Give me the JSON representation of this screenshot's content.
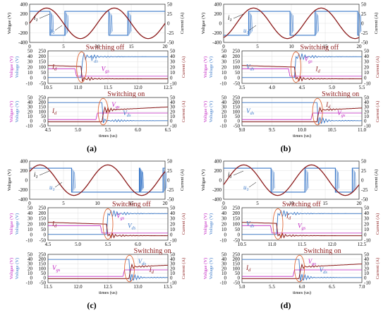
{
  "colors": {
    "voltage": "#3a78c8",
    "current": "#8b1a1a",
    "vgs": "#c020c0",
    "ellipse": "#e06a3a",
    "grid": "#d8d8d8",
    "axis_left_vgs": "#c020c0",
    "axis_right_current": "#8b1a1a",
    "axis_left_voltage": "#3a78c8"
  },
  "chart_data": [
    {
      "id": "a",
      "caption": "(a)",
      "top": {
        "type": "line",
        "ylabel_left": "Voltgae (V)",
        "ylabel_right": "Current (A)",
        "ylim_left": [
          -400,
          400
        ],
        "ylim_right": [
          -50,
          50
        ],
        "xlim": [
          0,
          20
        ],
        "yticks_left": [
          "400",
          "200",
          "0",
          "-200",
          "-400"
        ],
        "yticks_right": [
          "50",
          "25",
          "0",
          "-25",
          "-50"
        ],
        "xticks": [
          "0",
          "5",
          "10",
          "15",
          "20"
        ],
        "annotations": [
          "i",
          "1",
          "u",
          "1"
        ],
        "current_sine": {
          "amplitude": 40,
          "period": 10,
          "phase": 0.0
        },
        "voltage_squarewave": {
          "levels": [
            250,
            -250
          ],
          "edges": [
            3.0,
            5.2,
            11.7,
            14.5
          ]
        }
      },
      "middle": {
        "type": "line",
        "title": "Switching off",
        "ylabel_left": "Voltage (V)",
        "ylabel_left2": "Voltage (V)",
        "ylabel_right": "Current (A)",
        "xlim": [
          10.5,
          12.5
        ],
        "xticks": [
          "10.5",
          "11.0",
          "11.5",
          "12.0",
          "12.5"
        ],
        "yticks_left": [
          "50",
          "40",
          "30",
          "20",
          "10",
          "0",
          "-10"
        ],
        "yticks_left2": [
          "250",
          "200",
          "150",
          "100",
          "50",
          "0",
          "-50"
        ],
        "yticks_right": [
          "50",
          "40",
          "30",
          "20",
          "10",
          "0",
          "-10"
        ],
        "labels": [
          "I",
          "d",
          "V",
          "ds",
          "V",
          "gs"
        ]
      },
      "bottom": {
        "type": "line",
        "title": "Switching on",
        "xlabel": "times (us)",
        "xlim": [
          4.5,
          6.5
        ],
        "xticks": [
          "4.5",
          "5.0",
          "5.5",
          "6.0",
          "6.5"
        ],
        "yticks_left": [
          "50",
          "40",
          "30",
          "20",
          "10",
          "0",
          "-10"
        ],
        "yticks_left2": [
          "250",
          "200",
          "150",
          "100",
          "50",
          "0",
          "-50"
        ],
        "yticks_right": [
          "50",
          "40",
          "30",
          "20",
          "10",
          "0",
          "-10"
        ],
        "labels": [
          "I",
          "d",
          "V",
          "gs",
          "V",
          "ds"
        ]
      }
    },
    {
      "id": "b",
      "caption": "(b)",
      "top": {
        "type": "line",
        "ylabel_left": "Voltgae (V)",
        "ylabel_right": "Current (A)",
        "ylim_left": [
          -400,
          400
        ],
        "ylim_right": [
          -50,
          50
        ],
        "xlim": [
          0,
          20
        ],
        "yticks_left": [
          "400",
          "200",
          "0",
          "-200",
          "-400"
        ],
        "yticks_right": [
          "50",
          "25",
          "0",
          "-25",
          "-50"
        ],
        "xticks": [
          "0",
          "5",
          "10",
          "15",
          "20"
        ],
        "annotations": [
          "i",
          "1",
          "u",
          "1"
        ]
      },
      "middle": {
        "type": "line",
        "title": "Switching off",
        "xlim": [
          3.5,
          5.5
        ],
        "xticks": [
          "3.5",
          "4.0",
          "4.5",
          "5.0",
          "5.5"
        ],
        "yticks_left": [
          "50",
          "40",
          "30",
          "20",
          "10",
          "0",
          "-10"
        ],
        "yticks_left2": [
          "250",
          "200",
          "150",
          "100",
          "50",
          "0",
          "-50"
        ],
        "yticks_right": [
          "50",
          "40",
          "30",
          "20",
          "10",
          "0",
          "-10"
        ],
        "labels": [
          "V",
          "ds",
          "V",
          "gs",
          "I",
          "d"
        ]
      },
      "bottom": {
        "type": "line",
        "title": "Switching on",
        "xlabel": "times (us)",
        "xlim": [
          9.0,
          11.0
        ],
        "xticks": [
          "9.0",
          "9.5",
          "10.0",
          "10.5",
          "11.0"
        ],
        "yticks_left": [
          "50",
          "40",
          "30",
          "20",
          "10",
          "0",
          "-10"
        ],
        "yticks_left2": [
          "250",
          "200",
          "150",
          "100",
          "50",
          "0",
          "-50"
        ],
        "yticks_right": [
          "50",
          "40",
          "30",
          "20",
          "10",
          "0",
          "-10"
        ],
        "labels": [
          "V",
          "ds",
          "I",
          "d",
          "V",
          "gs"
        ]
      }
    },
    {
      "id": "c",
      "caption": "(c)",
      "top": {
        "type": "line",
        "ylabel_left": "Voltgae (V)",
        "ylabel_right": "Current (A)",
        "ylim_left": [
          -400,
          400
        ],
        "ylim_right": [
          -50,
          50
        ],
        "xlim": [
          0,
          20
        ],
        "yticks_left": [
          "400",
          "200",
          "0",
          "-200",
          "-400"
        ],
        "yticks_right": [
          "50",
          "25",
          "0",
          "-25",
          "-50"
        ],
        "xticks": [
          "0",
          "5",
          "10",
          "15",
          "20"
        ],
        "annotations": [
          "i",
          "1",
          "u",
          "1"
        ]
      },
      "middle": {
        "type": "line",
        "title": "Switching off",
        "xlim": [
          4.5,
          6.5
        ],
        "xticks": [
          "4.5",
          "5.0",
          "5.5",
          "6.0",
          "6.5"
        ],
        "yticks_left": [
          "50",
          "40",
          "30",
          "20",
          "10",
          "0",
          "-10"
        ],
        "yticks_left2": [
          "250",
          "200",
          "150",
          "100",
          "50",
          "0",
          "-50"
        ],
        "yticks_right": [
          "50",
          "40",
          "30",
          "20",
          "10",
          "0",
          "-10"
        ],
        "labels": [
          "I",
          "d",
          "V",
          "gs",
          "V",
          "ds"
        ]
      },
      "bottom": {
        "type": "line",
        "title": "Switching on",
        "xlabel": "times (us)",
        "xlim": [
          11.5,
          13.5
        ],
        "xticks": [
          "11.5",
          "12.0",
          "12.5",
          "13.0",
          "13.5"
        ],
        "yticks_left": [
          "50",
          "40",
          "30",
          "20",
          "10",
          "0",
          "-10"
        ],
        "yticks_left2": [
          "250",
          "200",
          "150",
          "100",
          "50",
          "0",
          "-50"
        ],
        "yticks_right": [
          "50",
          "40",
          "30",
          "20",
          "10",
          "0",
          "-10"
        ],
        "labels": [
          "V",
          "gs",
          "V",
          "ds",
          "I",
          "d"
        ]
      }
    },
    {
      "id": "d",
      "caption": "(d)",
      "top": {
        "type": "line",
        "ylabel_left": "Voltgae (V)",
        "ylabel_right": "Current (A)",
        "ylim_left": [
          -400,
          400
        ],
        "ylim_right": [
          -50,
          50
        ],
        "xlim": [
          0,
          20
        ],
        "yticks_left": [
          "400",
          "200",
          "0",
          "-200",
          "-400"
        ],
        "yticks_right": [
          "50",
          "25",
          "0",
          "-25",
          "-50"
        ],
        "xticks": [
          "0",
          "5",
          "10",
          "15",
          "20"
        ],
        "annotations": [
          "i",
          "1",
          "u",
          "1"
        ]
      },
      "middle": {
        "type": "line",
        "title": "Switching off",
        "xlim": [
          10.5,
          12.5
        ],
        "xticks": [
          "10.5",
          "11.0",
          "11.5",
          "12.0",
          "12.5"
        ],
        "yticks_left": [
          "50",
          "40",
          "30",
          "20",
          "10",
          "0",
          "-10"
        ],
        "yticks_left2": [
          "250",
          "200",
          "150",
          "100",
          "50",
          "0",
          "-50"
        ],
        "yticks_right": [
          "50",
          "40",
          "30",
          "20",
          "10",
          "0",
          "-10"
        ],
        "labels": [
          "V",
          "ds",
          "I",
          "d",
          "V",
          "gs"
        ]
      },
      "bottom": {
        "type": "line",
        "title": "Switching on",
        "xlabel": "times (us)",
        "xlim": [
          5.0,
          7.0
        ],
        "xticks": [
          "5.0",
          "5.5",
          "6.0",
          "6.5",
          "7.0"
        ],
        "yticks_left": [
          "50",
          "40",
          "30",
          "20",
          "10",
          "0",
          "-10"
        ],
        "yticks_left2": [
          "250",
          "200",
          "150",
          "100",
          "50",
          "0",
          "-50"
        ],
        "yticks_right": [
          "50",
          "40",
          "30",
          "20",
          "10",
          "0",
          "-10"
        ],
        "labels": [
          "I",
          "d",
          "V",
          "gs",
          "V",
          "ds"
        ]
      }
    }
  ]
}
